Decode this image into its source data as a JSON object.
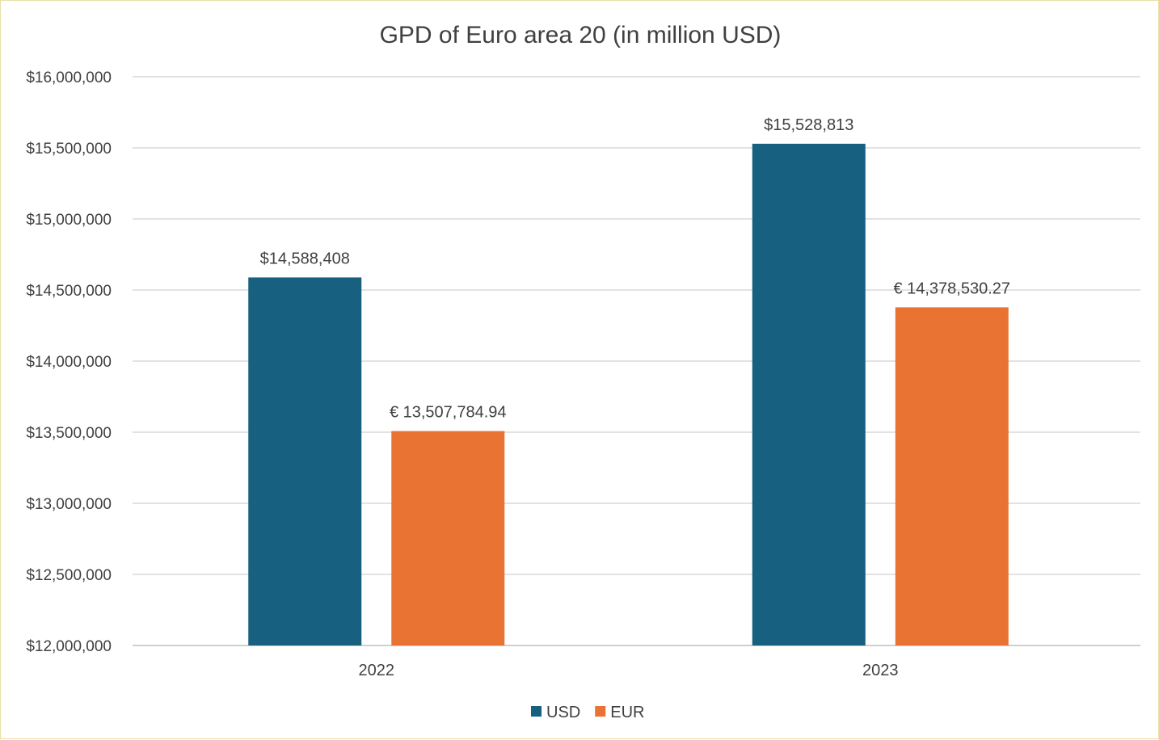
{
  "chart_data": {
    "type": "bar",
    "title": "GPD of Euro area 20 (in million USD)",
    "xlabel": "",
    "ylabel": "",
    "categories": [
      "2022",
      "2023"
    ],
    "ylim": [
      12000000,
      16000000
    ],
    "yticks": [
      12000000,
      12500000,
      13000000,
      13500000,
      14000000,
      14500000,
      15000000,
      15500000,
      16000000
    ],
    "ytick_labels": [
      "$12,000,000",
      "$12,500,000",
      "$13,000,000",
      "$13,500,000",
      "$14,000,000",
      "$14,500,000",
      "$15,000,000",
      "$15,500,000",
      "$16,000,000"
    ],
    "grid": true,
    "legend_position": "bottom",
    "series": [
      {
        "name": "USD",
        "color": "#17607f",
        "values": [
          14588408,
          15528813
        ],
        "labels": [
          "$14,588,408",
          "$15,528,813"
        ]
      },
      {
        "name": "EUR",
        "color": "#e97333",
        "values": [
          13507784.94,
          14378530.27
        ],
        "labels": [
          "€ 13,507,784.94",
          "€ 14,378,530.27"
        ]
      }
    ]
  }
}
